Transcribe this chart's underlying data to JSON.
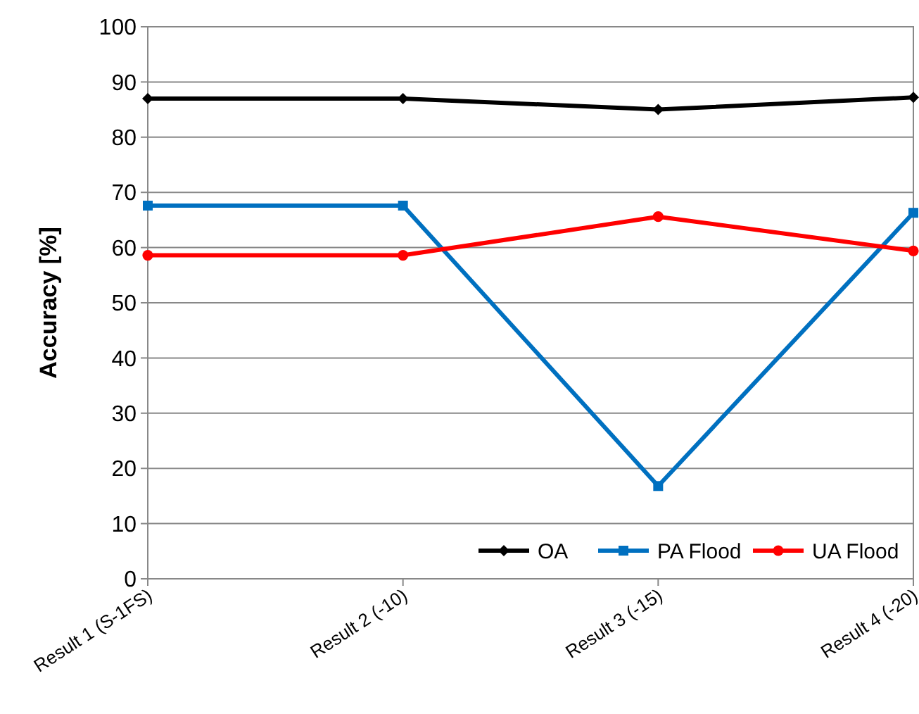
{
  "chart_data": {
    "type": "line",
    "ylabel": "Accuracy [%]",
    "categories": [
      "Result 1 (S-1FS)",
      "Result 2 (-10)",
      "Result 3 (-15)",
      "Result 4 (-20)"
    ],
    "series": [
      {
        "name": "OA",
        "color": "#000000",
        "marker": "diamond",
        "values": [
          87,
          87,
          85,
          87.2
        ]
      },
      {
        "name": "PA Flood",
        "color": "#0070c0",
        "marker": "square",
        "values": [
          67.6,
          67.6,
          16.8,
          66.3
        ]
      },
      {
        "name": "UA Flood",
        "color": "#ff0000",
        "marker": "circle",
        "values": [
          58.6,
          58.6,
          65.6,
          59.4
        ]
      }
    ],
    "ylim": [
      0,
      100
    ],
    "yticks": [
      0,
      10,
      20,
      30,
      40,
      50,
      60,
      70,
      80,
      90,
      100
    ],
    "grid": "y",
    "legend": "bottom right",
    "line_style": "solid"
  }
}
